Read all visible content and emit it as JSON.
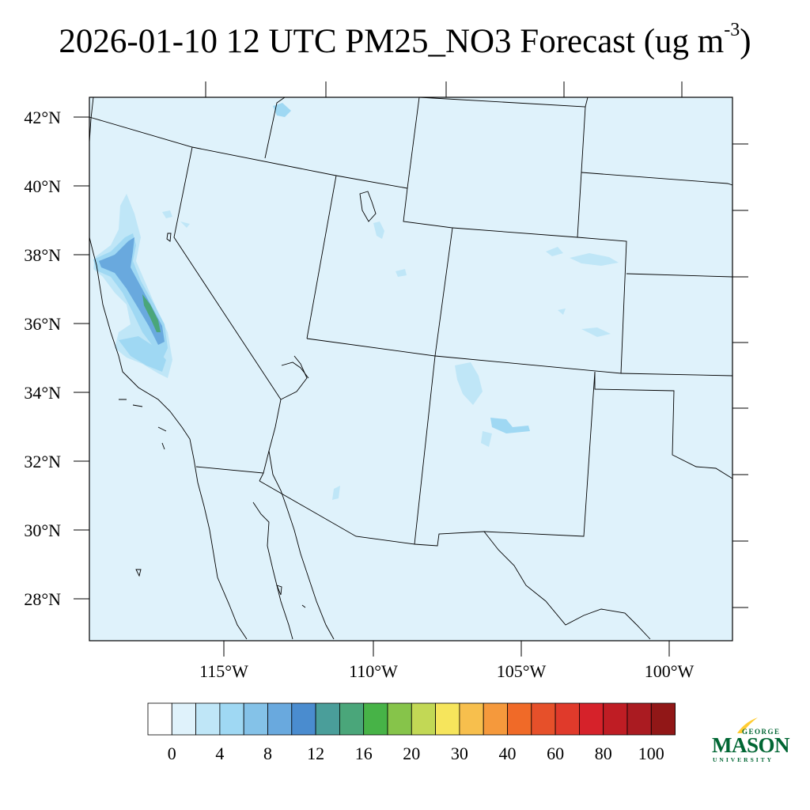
{
  "title": {
    "main": "2026-01-10 12 UTC PM25_NO3 Forecast (ug m",
    "superscript": "-3",
    "close": ")"
  },
  "map": {
    "background_color": "#dff2fb",
    "lat_labels": [
      "42°N",
      "40°N",
      "38°N",
      "36°N",
      "34°N",
      "32°N",
      "30°N",
      "28°N"
    ],
    "lon_labels": [
      "115°W",
      "110°W",
      "105°W",
      "100°W"
    ]
  },
  "colorbar": {
    "labels": [
      "0",
      "4",
      "8",
      "12",
      "16",
      "20",
      "30",
      "40",
      "60",
      "80",
      "100"
    ],
    "colors": [
      "#ffffff",
      "#dff2fb",
      "#bfe6f7",
      "#9fd8f3",
      "#84c2e8",
      "#69a9de",
      "#4a8ccf",
      "#4a9e9a",
      "#4aa67a",
      "#47b347",
      "#86c44a",
      "#c2d855",
      "#f6e55c",
      "#f7bf4d",
      "#f5993c",
      "#f06a28",
      "#e6502a",
      "#e03a2b",
      "#d6222a",
      "#bf1d24",
      "#aa1b21",
      "#911717"
    ]
  },
  "logo": {
    "line1": "GEORGE",
    "line2": "MASON",
    "line3": "UNIVERSITY",
    "green": "#006633",
    "gold": "#ffcc33"
  }
}
